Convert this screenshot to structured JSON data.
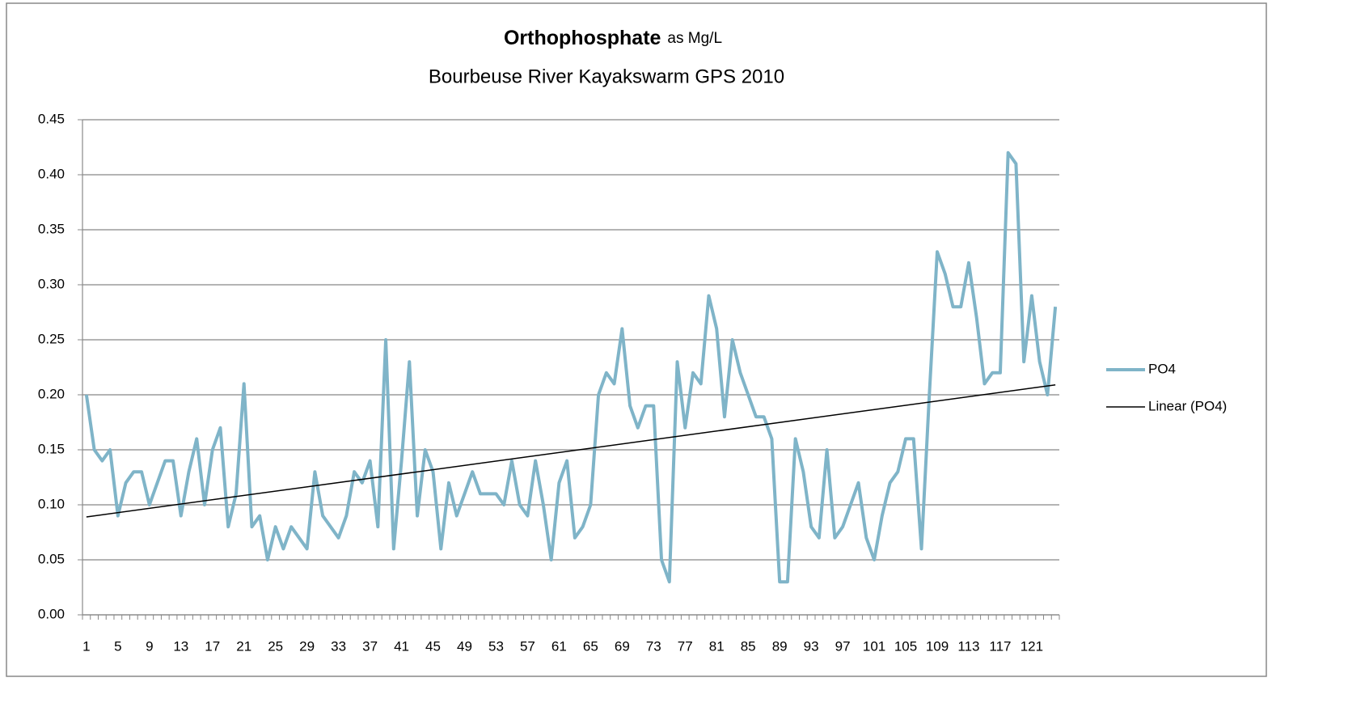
{
  "chart_data": {
    "type": "line",
    "title": "Orthophosphate",
    "title_unit": "as Mg/L",
    "subtitle": "Bourbeuse River Kayakswarm GPS 2010",
    "categories": [
      "1",
      null,
      null,
      null,
      "5",
      null,
      null,
      null,
      "9",
      null,
      null,
      null,
      "13",
      null,
      null,
      null,
      "17",
      null,
      null,
      null,
      "21",
      null,
      null,
      null,
      "25",
      null,
      null,
      null,
      "29",
      null,
      null,
      null,
      "33",
      null,
      null,
      null,
      "37",
      null,
      null,
      null,
      "41",
      null,
      null,
      null,
      "45",
      null,
      null,
      null,
      "49",
      null,
      null,
      null,
      "53",
      null,
      null,
      null,
      "57",
      null,
      null,
      null,
      "61",
      null,
      null,
      null,
      "65",
      null,
      null,
      null,
      "69",
      null,
      null,
      null,
      "73",
      null,
      null,
      null,
      "77",
      null,
      null,
      null,
      "81",
      null,
      null,
      null,
      "85",
      null,
      null,
      null,
      "89",
      null,
      null,
      null,
      "93",
      null,
      null,
      null,
      "97",
      null,
      null,
      null,
      "101",
      null,
      null,
      null,
      "105",
      null,
      null,
      null,
      "109",
      null,
      null,
      null,
      "113",
      null,
      null,
      null,
      "117",
      null,
      null,
      null,
      "121",
      null,
      null,
      null
    ],
    "series": [
      {
        "name": "PO4",
        "color": "#7fb4c8",
        "values": [
          0.2,
          0.15,
          0.14,
          0.15,
          0.09,
          0.12,
          0.13,
          0.13,
          0.1,
          0.12,
          0.14,
          0.14,
          0.09,
          0.13,
          0.16,
          0.1,
          0.15,
          0.17,
          0.08,
          0.11,
          0.21,
          0.08,
          0.09,
          0.05,
          0.08,
          0.06,
          0.08,
          0.07,
          0.06,
          0.13,
          0.09,
          0.08,
          0.07,
          0.09,
          0.13,
          0.12,
          0.14,
          0.08,
          0.25,
          0.06,
          0.14,
          0.23,
          0.09,
          0.15,
          0.13,
          0.06,
          0.12,
          0.09,
          0.11,
          0.13,
          0.11,
          0.11,
          0.11,
          0.1,
          0.14,
          0.1,
          0.09,
          0.14,
          0.1,
          0.05,
          0.12,
          0.14,
          0.07,
          0.08,
          0.1,
          0.2,
          0.22,
          0.21,
          0.26,
          0.19,
          0.17,
          0.19,
          0.19,
          0.05,
          0.03,
          0.23,
          0.17,
          0.22,
          0.21,
          0.29,
          0.26,
          0.18,
          0.25,
          0.22,
          0.2,
          0.18,
          0.18,
          0.16,
          0.03,
          0.03,
          0.16,
          0.13,
          0.08,
          0.07,
          0.15,
          0.07,
          0.08,
          0.1,
          0.12,
          0.07,
          0.05,
          0.09,
          0.12,
          0.13,
          0.16,
          0.16,
          0.06,
          0.2,
          0.33,
          0.31,
          0.28,
          0.28,
          0.32,
          0.27,
          0.21,
          0.22,
          0.22,
          0.42,
          0.41,
          0.23,
          0.29,
          0.23,
          0.2,
          0.28
        ]
      }
    ],
    "trendline": {
      "name": "Linear (PO4)",
      "color": "#000000",
      "values": [
        0.089,
        0.209
      ]
    },
    "ylim": [
      0,
      0.45
    ],
    "yticks": [
      {
        "value": 0,
        "label": "0.00"
      },
      0.05,
      {
        "value": 0.1,
        "label": "0.10"
      },
      0.15,
      {
        "value": 0.2,
        "label": "0.20"
      },
      0.25,
      {
        "value": 0.3,
        "label": "0.30"
      },
      0.35,
      {
        "value": 0.4,
        "label": "0.40"
      },
      0.45
    ],
    "grid": true,
    "legend": "right"
  }
}
